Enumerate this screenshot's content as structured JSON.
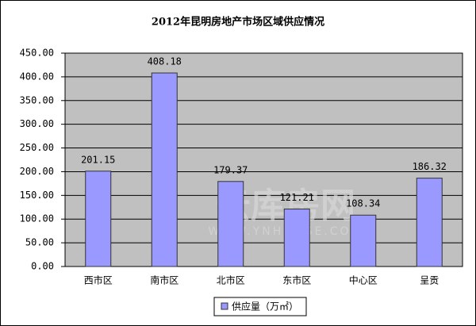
{
  "chart_data": {
    "type": "bar",
    "title": "2012年昆明房地产市场区域供应情况",
    "categories": [
      "西市区",
      "南市区",
      "北市区",
      "东市区",
      "中心区",
      "呈贡"
    ],
    "series": [
      {
        "name": "供应量（万㎡）",
        "color": "#9999ff",
        "values": [
          201.15,
          408.18,
          179.37,
          121.21,
          108.34,
          186.32
        ]
      }
    ],
    "ylim": [
      0,
      450
    ],
    "yticks": [
      {
        "value": 0,
        "label": "0.00"
      },
      {
        "value": 50,
        "label": "50.00"
      },
      {
        "value": 100,
        "label": "100.00"
      },
      {
        "value": 150,
        "label": "150.00"
      },
      {
        "value": 200,
        "label": "200.00"
      },
      {
        "value": 250,
        "label": "250.00"
      },
      {
        "value": 300,
        "label": "300.00"
      },
      {
        "value": 350,
        "label": "350.00"
      },
      {
        "value": 400,
        "label": "400.00"
      },
      {
        "value": 450,
        "label": "450.00"
      }
    ],
    "grid": true,
    "plot_background": "#c0c0c0",
    "legend": "bottom",
    "watermark": [
      "云库房网",
      "WWW.YNHOUSE.COM"
    ]
  }
}
